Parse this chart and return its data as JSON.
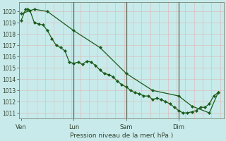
{
  "bg_color": "#c8eaea",
  "plot_bg_color": "#c8eaea",
  "grid_color": "#b0d8d8",
  "grid_minor_color": "#e8f8f8",
  "line_color": "#1a5c1a",
  "marker_color": "#1a5c1a",
  "xlabel": "Pression niveau de la mer( hPa )",
  "ylim": [
    1010.5,
    1020.8
  ],
  "yticks": [
    1011,
    1012,
    1013,
    1014,
    1015,
    1016,
    1017,
    1018,
    1019,
    1020
  ],
  "day_labels": [
    "Ven",
    "Lun",
    "Sam",
    "Dim"
  ],
  "day_positions": [
    0,
    48,
    96,
    144
  ],
  "vline_positions": [
    48,
    96,
    144
  ],
  "xlim": [
    -2,
    185
  ],
  "series1_x": [
    0,
    4,
    6,
    8,
    12,
    16,
    20,
    24,
    28,
    32,
    36,
    40,
    44,
    48,
    52,
    56,
    60,
    64,
    68,
    72,
    76,
    80,
    84,
    88,
    92,
    96,
    100,
    104,
    108,
    112,
    116,
    120,
    124,
    128,
    132,
    136,
    140,
    144,
    148,
    152,
    156,
    160,
    164,
    168,
    172,
    176,
    180
  ],
  "series1_y": [
    1019.2,
    1020.2,
    1020.2,
    1020.1,
    1019.0,
    1018.9,
    1018.8,
    1018.3,
    1017.6,
    1017.0,
    1016.8,
    1016.5,
    1015.5,
    1015.4,
    1015.5,
    1015.3,
    1015.6,
    1015.5,
    1015.2,
    1014.8,
    1014.5,
    1014.4,
    1014.2,
    1013.8,
    1013.5,
    1013.3,
    1013.0,
    1012.8,
    1012.7,
    1012.5,
    1012.5,
    1012.2,
    1012.3,
    1012.2,
    1012.0,
    1011.8,
    1011.5,
    1011.2,
    1011.0,
    1011.0,
    1011.1,
    1011.2,
    1011.5,
    1011.5,
    1011.8,
    1012.5,
    1012.8
  ],
  "series2_x": [
    0,
    12,
    24,
    48,
    72,
    96,
    120,
    144,
    156,
    172,
    180
  ],
  "series2_y": [
    1019.8,
    1020.2,
    1020.0,
    1018.3,
    1016.8,
    1014.5,
    1013.0,
    1012.5,
    1011.6,
    1011.0,
    1012.8
  ]
}
